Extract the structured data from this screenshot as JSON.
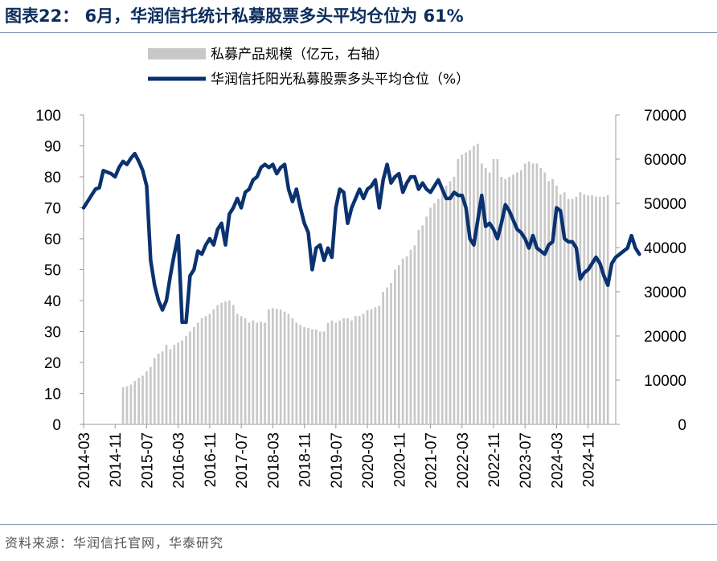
{
  "header": {
    "title": "图表22： 6月，华润信托统计私募股票多头平均仓位为 61%"
  },
  "footer": {
    "source": "资料来源：华润信托官网，华泰研究"
  },
  "colors": {
    "line": "#0b3270",
    "bar": "#c8c8c8",
    "title": "#0b2d5c"
  },
  "chart_data": {
    "type": "bar+line",
    "legend": {
      "placement": "top-right",
      "bar_label": "私募产品规模（亿元，右轴）",
      "line_label": "华润信托阳光私募股票多头平均仓位（%）"
    },
    "x_tick_labels": [
      "2014-03",
      "2014-11",
      "2015-07",
      "2016-03",
      "2016-11",
      "2017-07",
      "2018-03",
      "2018-11",
      "2019-07",
      "2020-03",
      "2020-11",
      "2021-07",
      "2022-03",
      "2022-11",
      "2023-07",
      "2024-03",
      "2024-11"
    ],
    "left_axis": {
      "min": 0,
      "max": 100,
      "ticks": [
        0,
        10,
        20,
        30,
        40,
        50,
        60,
        70,
        80,
        90,
        100
      ]
    },
    "right_axis": {
      "min": 0,
      "max": 70000,
      "ticks": [
        0,
        10000,
        20000,
        30000,
        40000,
        50000,
        60000,
        70000
      ]
    },
    "start": "2014-03",
    "end": "2025-06",
    "series": [
      {
        "name": "私募产品规模（亿元，右轴）",
        "kind": "bar",
        "axis": "right",
        "start": "2015-01",
        "values": [
          8400,
          8600,
          9000,
          9800,
          10500,
          11000,
          12000,
          13000,
          15000,
          16000,
          16500,
          18000,
          17000,
          18000,
          18500,
          19000,
          20000,
          21000,
          22000,
          23000,
          24000,
          24500,
          25000,
          26000,
          27000,
          27500,
          27800,
          28000,
          27000,
          25000,
          24500,
          24000,
          23000,
          23500,
          23000,
          23200,
          23000,
          26000,
          26300,
          26100,
          26000,
          25500,
          25000,
          24000,
          23000,
          22500,
          22000,
          21800,
          21500,
          21500,
          21000,
          21000,
          23000,
          23500,
          23000,
          23500,
          24000,
          24000,
          23500,
          24500,
          24500,
          25000,
          25800,
          26000,
          26500,
          26800,
          30000,
          31000,
          32000,
          35000,
          36000,
          37500,
          38000,
          39500,
          40500,
          44000,
          45000,
          47000,
          49000,
          50000,
          51000,
          53000,
          54000,
          55000,
          56000,
          60000,
          61000,
          61500,
          62000,
          63000,
          63500,
          59000,
          58000,
          57000,
          60000,
          60000,
          56000,
          55500,
          56000,
          56500,
          57000,
          57500,
          59000,
          59500,
          59000,
          59000,
          58000,
          57000,
          55000,
          55500,
          54000,
          52000,
          52500,
          51000,
          51000,
          51500,
          52500,
          52000,
          51800,
          51800,
          51500,
          51500,
          51500,
          51800
        ]
      },
      {
        "name": "华润信托阳光私募股票多头平均仓位（%）",
        "kind": "line",
        "axis": "left",
        "start": "2014-03",
        "values": [
          70,
          72,
          74,
          76,
          76.5,
          82,
          81.5,
          81,
          80,
          83,
          85,
          84,
          86,
          87.5,
          85,
          82,
          77,
          53,
          45,
          40,
          37,
          40,
          48,
          55,
          61,
          33,
          33,
          48,
          50,
          56,
          55,
          58,
          60,
          58,
          63,
          65,
          58,
          68,
          70,
          73,
          70,
          75,
          76,
          79,
          80,
          83,
          84,
          83,
          84,
          81,
          83,
          84,
          76,
          72,
          76,
          70,
          65,
          62,
          50,
          57,
          58,
          53,
          57,
          54,
          70,
          76,
          75,
          65,
          70,
          73,
          76,
          73,
          76,
          77,
          79,
          70,
          79,
          84,
          78,
          80,
          81,
          75,
          78,
          80,
          80,
          76,
          78,
          76,
          75,
          77,
          79,
          76,
          73,
          73,
          75,
          74,
          74,
          70,
          60,
          58,
          66,
          74,
          64,
          65,
          63,
          60,
          65,
          71,
          69,
          66,
          63,
          62,
          60,
          57,
          61,
          57,
          56,
          55,
          58,
          59,
          70,
          69,
          60,
          59,
          59,
          57,
          47,
          49,
          50,
          52,
          54,
          52,
          48,
          45,
          52,
          54,
          55,
          56,
          57,
          61,
          57,
          55
        ]
      }
    ]
  }
}
